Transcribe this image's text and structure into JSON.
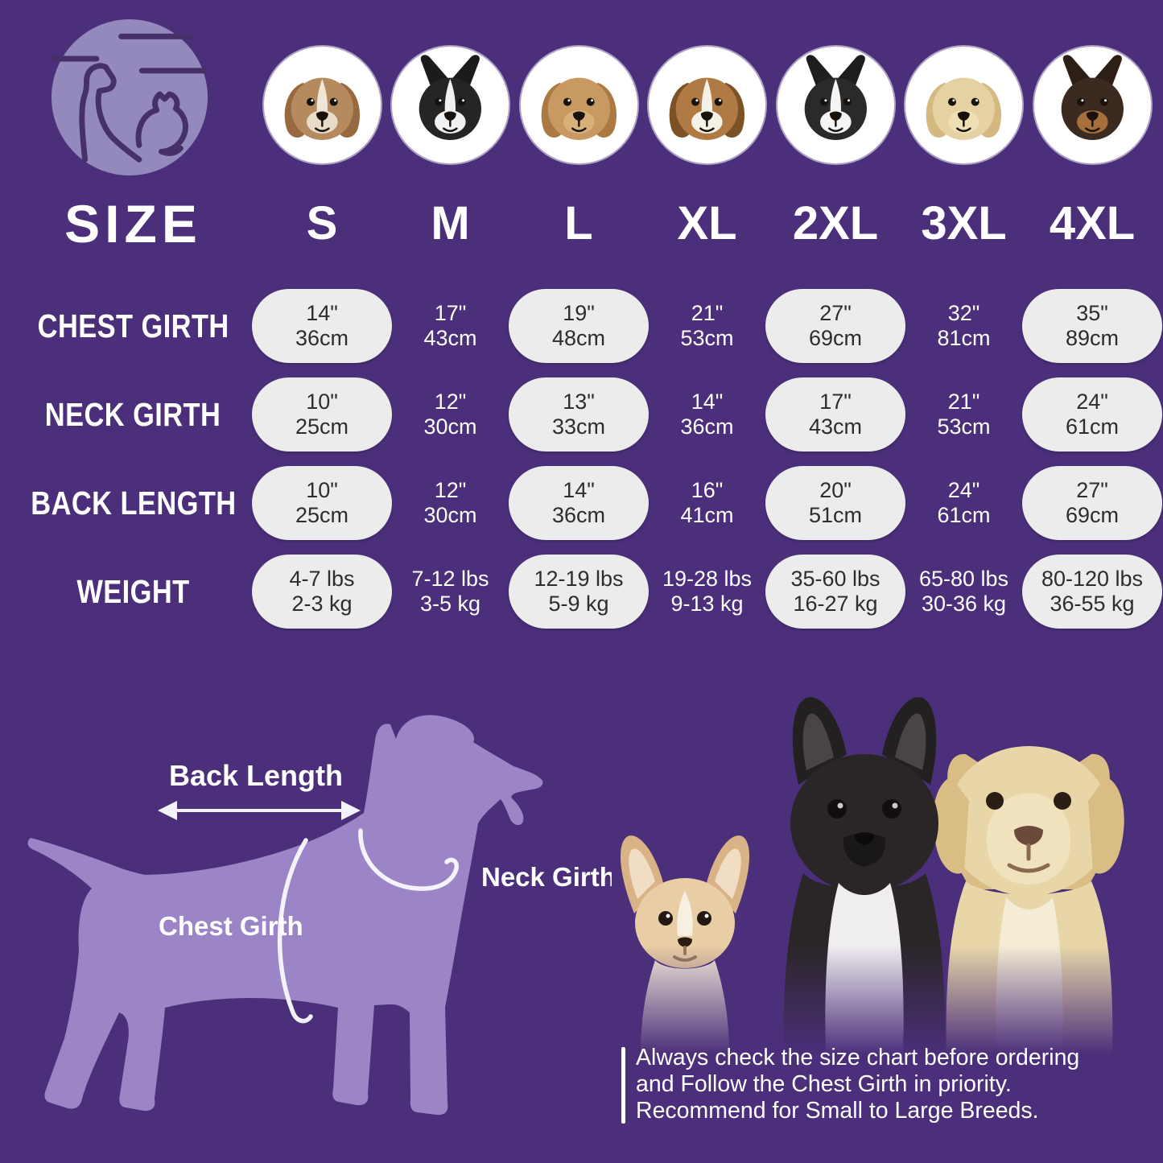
{
  "colors": {
    "background": "#4b2f7a",
    "silhouette": "#9c85c7",
    "logo_circle": "#9489bd",
    "pill_background": "#ececec",
    "pill_text": "#2d2d2d",
    "text_light": "#ffffff"
  },
  "logo": {
    "icon": "dog-cat-logo-icon"
  },
  "header": {
    "size_label": "SIZE",
    "columns": [
      {
        "size": "S",
        "breed": "shih-tzu"
      },
      {
        "size": "M",
        "breed": "boston-terrier"
      },
      {
        "size": "L",
        "breed": "cocker-spaniel"
      },
      {
        "size": "XL",
        "breed": "beagle"
      },
      {
        "size": "2XL",
        "breed": "border-collie"
      },
      {
        "size": "3XL",
        "breed": "labrador"
      },
      {
        "size": "4XL",
        "breed": "doberman"
      }
    ]
  },
  "table": {
    "rows": [
      {
        "label": "CHEST GIRTH",
        "values": [
          [
            "14\"",
            "36cm"
          ],
          [
            "17\"",
            "43cm"
          ],
          [
            "19\"",
            "48cm"
          ],
          [
            "21\"",
            "53cm"
          ],
          [
            "27\"",
            "69cm"
          ],
          [
            "32\"",
            "81cm"
          ],
          [
            "35\"",
            "89cm"
          ]
        ]
      },
      {
        "label": "NECK GIRTH",
        "values": [
          [
            "10\"",
            "25cm"
          ],
          [
            "12\"",
            "30cm"
          ],
          [
            "13\"",
            "33cm"
          ],
          [
            "14\"",
            "36cm"
          ],
          [
            "17\"",
            "43cm"
          ],
          [
            "21\"",
            "53cm"
          ],
          [
            "24\"",
            "61cm"
          ]
        ]
      },
      {
        "label": "BACK LENGTH",
        "values": [
          [
            "10\"",
            "25cm"
          ],
          [
            "12\"",
            "30cm"
          ],
          [
            "14\"",
            "36cm"
          ],
          [
            "16\"",
            "41cm"
          ],
          [
            "20\"",
            "51cm"
          ],
          [
            "24\"",
            "61cm"
          ],
          [
            "27\"",
            "69cm"
          ]
        ]
      },
      {
        "label": "WEIGHT",
        "values": [
          [
            "4-7 lbs",
            "2-3 kg"
          ],
          [
            "7-12 lbs",
            "3-5 kg"
          ],
          [
            "12-19 lbs",
            "5-9 kg"
          ],
          [
            "19-28 lbs",
            "9-13 kg"
          ],
          [
            "35-60 lbs",
            "16-27 kg"
          ],
          [
            "65-80 lbs",
            "30-36 kg"
          ],
          [
            "80-120 lbs",
            "36-55 kg"
          ]
        ]
      }
    ]
  },
  "diagram": {
    "back_length_label": "Back Length",
    "neck_girth_label": "Neck Girth",
    "chest_girth_label": "Chest Girth"
  },
  "note": {
    "lines": [
      "Always check the size chart before ordering",
      "and Follow the Chest Girth in priority.",
      "Recommend for Small to Large Breeds."
    ]
  }
}
